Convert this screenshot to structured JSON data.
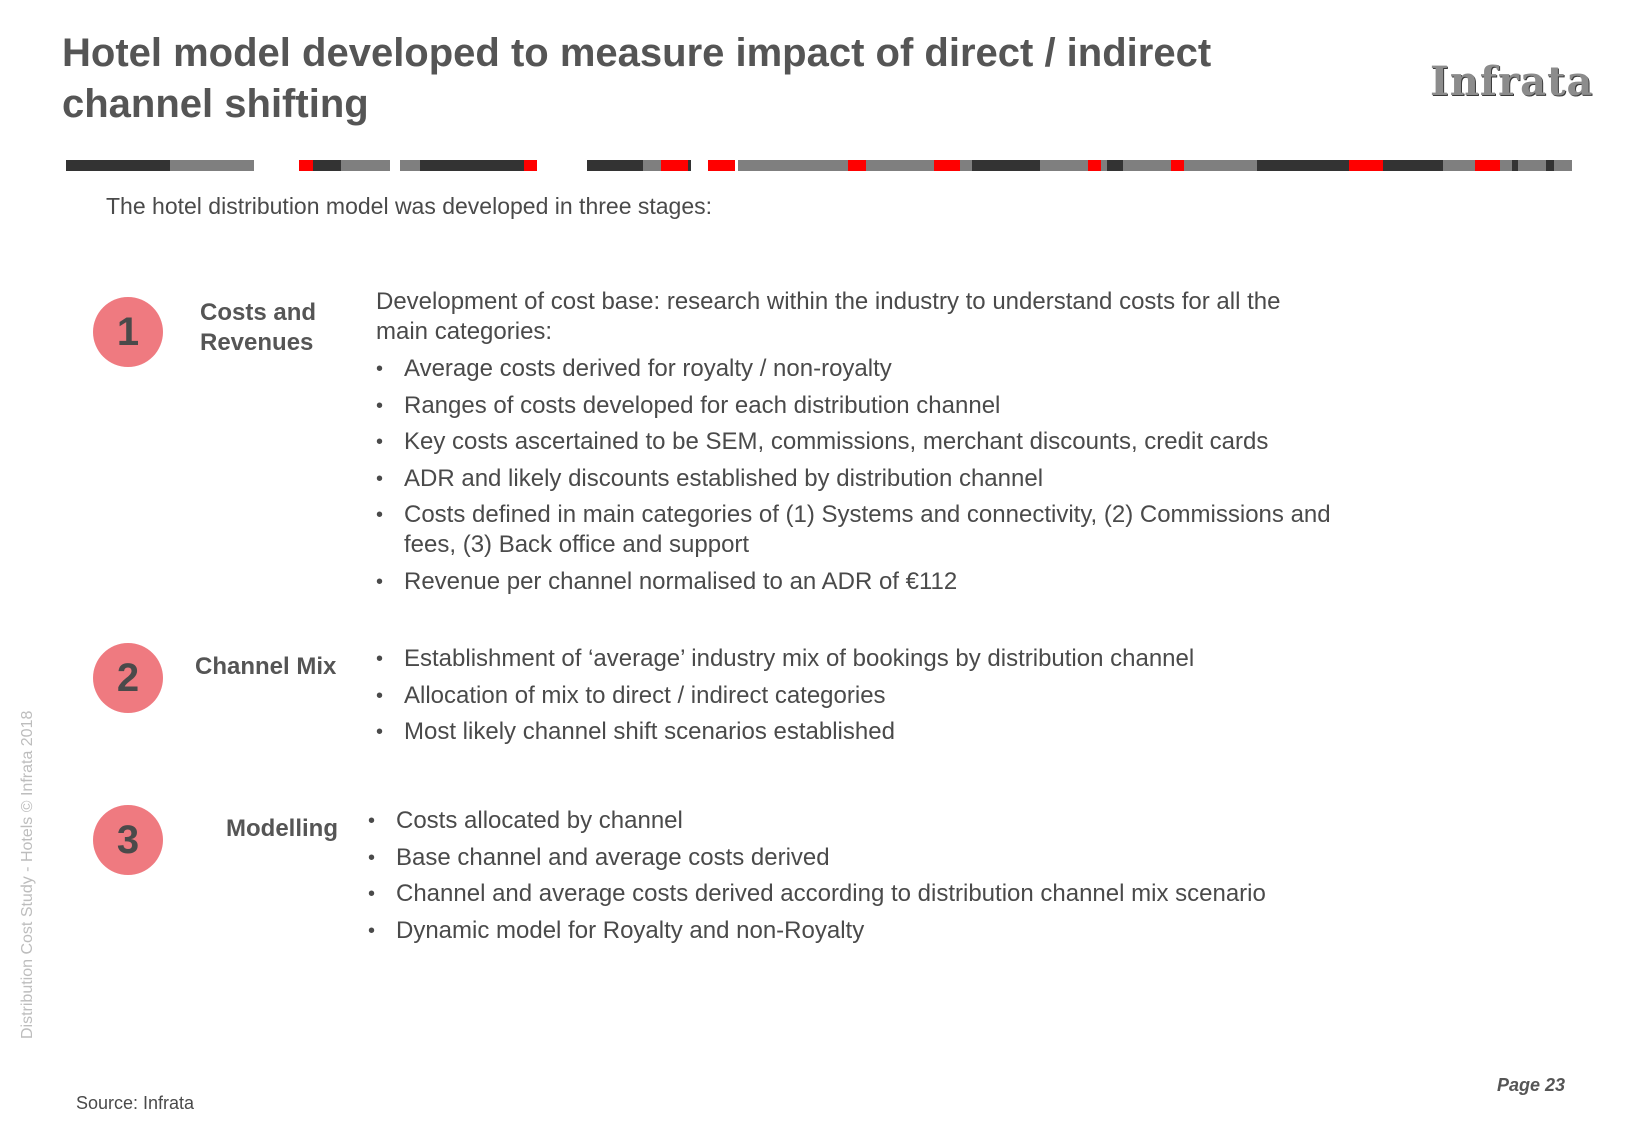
{
  "header": {
    "title": "Hotel model developed to measure impact of direct / indirect channel shifting",
    "logo_text": "Infrata"
  },
  "colors": {
    "dark": "#333333",
    "grey": "#7f7f7f",
    "red": "#ff0000",
    "circle": "#ef7a80"
  },
  "intro": "The hotel distribution model was developed in three stages:",
  "stages": [
    {
      "number": "1",
      "label": "Costs and Revenues",
      "description": "Development of cost base: research within the industry to understand costs for all the main categories:",
      "bullets": [
        "Average costs derived for royalty / non-royalty",
        "Ranges of costs developed for each distribution channel",
        "Key costs ascertained to be SEM, commissions, merchant discounts, credit cards",
        "ADR and likely discounts established by distribution channel",
        "Costs defined in main categories of (1) Systems and connectivity, (2) Commissions and fees, (3) Back office and support",
        "Revenue per channel normalised to an ADR of €112"
      ]
    },
    {
      "number": "2",
      "label": "Channel Mix",
      "bullets": [
        "Establishment of ‘average’ industry mix of bookings by distribution channel",
        "Allocation of mix to direct / indirect categories",
        "Most likely channel shift scenarios established"
      ]
    },
    {
      "number": "3",
      "label": "Modelling",
      "bullets": [
        "Costs allocated by channel",
        "Base channel and average costs derived",
        "Channel and average costs derived according to distribution channel mix scenario",
        "Dynamic model for Royalty and non-Royalty"
      ]
    }
  ],
  "footer": {
    "side_note": "Distribution Cost Study -  Hotels © Infrata 2018",
    "page": "Page 23",
    "source": "Source: Infrata"
  }
}
